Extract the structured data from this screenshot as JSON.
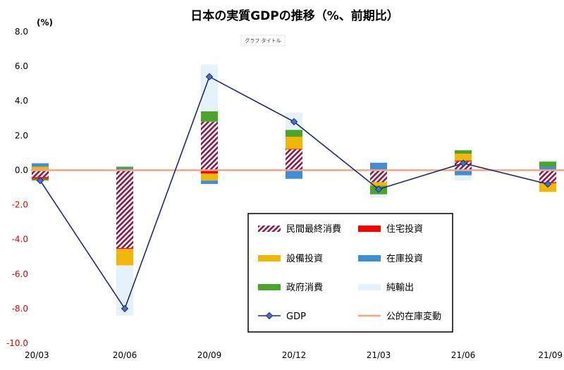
{
  "chart_data": {
    "type": "bar",
    "title": "日本の実質GDPの推移（%、前期比）",
    "badge": "グラフ タイトル",
    "unit_label": "(%)",
    "categories": [
      "20/03",
      "20/06",
      "20/09",
      "20/12",
      "21/03",
      "21/06",
      "21/09"
    ],
    "ylim": [
      -10.0,
      8.0
    ],
    "y_ticks": [
      "8.0",
      "6.0",
      "4.0",
      "2.0",
      "0.0",
      "-2.0",
      "-4.0",
      "-6.0",
      "-8.0",
      "-10.0"
    ],
    "stacked": true,
    "series": [
      {
        "name": "民間最終消費",
        "color": "#8b1a4a",
        "pattern": "hatch",
        "values": [
          -0.4,
          -4.5,
          2.8,
          1.2,
          -0.7,
          0.5,
          -0.7
        ]
      },
      {
        "name": "住宅投資",
        "color": "#ff0000",
        "values": [
          -0.1,
          -0.05,
          -0.2,
          0.03,
          0.03,
          0.05,
          -0.06
        ]
      },
      {
        "name": "設備投資",
        "color": "#f2b705",
        "values": [
          0.2,
          -0.95,
          -0.4,
          0.7,
          -0.2,
          0.4,
          -0.5
        ]
      },
      {
        "name": "在庫投資",
        "color": "#3f8ed8",
        "values": [
          0.2,
          0.1,
          -0.2,
          -0.5,
          0.4,
          -0.3,
          0.2
        ]
      },
      {
        "name": "政府消費",
        "color": "#4aa52a",
        "values": [
          -0.1,
          0.1,
          0.6,
          0.4,
          -0.5,
          0.2,
          0.3
        ]
      },
      {
        "name": "純輸出",
        "color": "#e6f2fb",
        "values": [
          -0.1,
          -2.9,
          2.7,
          1.0,
          -0.2,
          -0.3,
          0.1
        ]
      }
    ],
    "line_series": [
      {
        "name": "GDP",
        "color": "#1f2a7a",
        "marker": "#4472c4",
        "values": [
          -0.6,
          -8.0,
          5.4,
          2.8,
          -1.1,
          0.4,
          -0.8
        ]
      },
      {
        "name": "公的在庫変動",
        "color": "#f4a582",
        "values": [
          0.0,
          0.0,
          0.0,
          0.0,
          0.0,
          0.0,
          0.0
        ]
      }
    ],
    "legend_position": "bottom-right",
    "grid": false
  }
}
